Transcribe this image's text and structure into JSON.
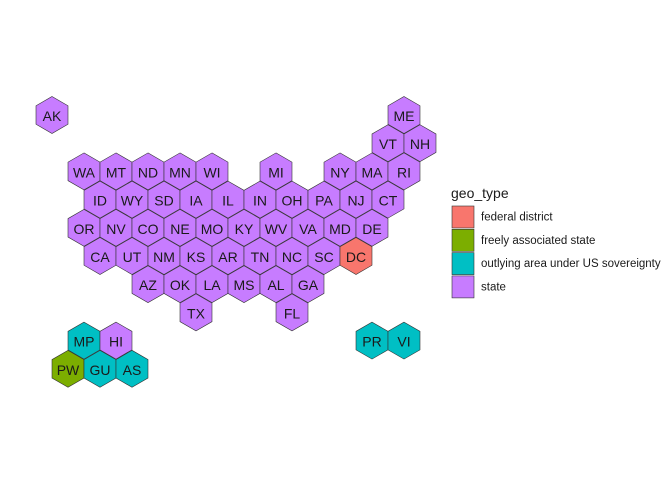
{
  "chart_data": {
    "type": "hexmap",
    "legend": {
      "title": "geo_type",
      "placement": "right",
      "entries": [
        {
          "key": "federal district",
          "label": "federal district",
          "color": "#F8766D"
        },
        {
          "key": "freely associated state",
          "label": "freely associated state",
          "color": "#7CAE00"
        },
        {
          "key": "outlying area",
          "label": "outlying area under US sovereignty",
          "color": "#00BFC4"
        },
        {
          "key": "state",
          "label": "state",
          "color": "#C77CFF"
        }
      ]
    },
    "hexes": [
      {
        "label": "AK",
        "col": 0,
        "row": 0,
        "type": "state"
      },
      {
        "label": "ME",
        "col": 11,
        "row": 0,
        "type": "state"
      },
      {
        "label": "VT",
        "col": 10,
        "row": 1,
        "type": "state"
      },
      {
        "label": "NH",
        "col": 11,
        "row": 1,
        "type": "state"
      },
      {
        "label": "WA",
        "col": 1,
        "row": 2,
        "type": "state"
      },
      {
        "label": "MT",
        "col": 2,
        "row": 2,
        "type": "state"
      },
      {
        "label": "ND",
        "col": 3,
        "row": 2,
        "type": "state"
      },
      {
        "label": "MN",
        "col": 4,
        "row": 2,
        "type": "state"
      },
      {
        "label": "WI",
        "col": 5,
        "row": 2,
        "type": "state"
      },
      {
        "label": "MI",
        "col": 7,
        "row": 2,
        "type": "state"
      },
      {
        "label": "NY",
        "col": 9,
        "row": 2,
        "type": "state"
      },
      {
        "label": "MA",
        "col": 10,
        "row": 2,
        "type": "state"
      },
      {
        "label": "RI",
        "col": 11,
        "row": 2,
        "type": "state"
      },
      {
        "label": "ID",
        "col": 1,
        "row": 3,
        "type": "state"
      },
      {
        "label": "WY",
        "col": 2,
        "row": 3,
        "type": "state"
      },
      {
        "label": "SD",
        "col": 3,
        "row": 3,
        "type": "state"
      },
      {
        "label": "IA",
        "col": 4,
        "row": 3,
        "type": "state"
      },
      {
        "label": "IL",
        "col": 5,
        "row": 3,
        "type": "state"
      },
      {
        "label": "IN",
        "col": 6,
        "row": 3,
        "type": "state"
      },
      {
        "label": "OH",
        "col": 7,
        "row": 3,
        "type": "state"
      },
      {
        "label": "PA",
        "col": 8,
        "row": 3,
        "type": "state"
      },
      {
        "label": "NJ",
        "col": 9,
        "row": 3,
        "type": "state"
      },
      {
        "label": "CT",
        "col": 10,
        "row": 3,
        "type": "state"
      },
      {
        "label": "OR",
        "col": 1,
        "row": 4,
        "type": "state"
      },
      {
        "label": "NV",
        "col": 2,
        "row": 4,
        "type": "state"
      },
      {
        "label": "CO",
        "col": 3,
        "row": 4,
        "type": "state"
      },
      {
        "label": "NE",
        "col": 4,
        "row": 4,
        "type": "state"
      },
      {
        "label": "MO",
        "col": 5,
        "row": 4,
        "type": "state"
      },
      {
        "label": "KY",
        "col": 6,
        "row": 4,
        "type": "state"
      },
      {
        "label": "WV",
        "col": 7,
        "row": 4,
        "type": "state"
      },
      {
        "label": "VA",
        "col": 8,
        "row": 4,
        "type": "state"
      },
      {
        "label": "MD",
        "col": 9,
        "row": 4,
        "type": "state"
      },
      {
        "label": "DE",
        "col": 10,
        "row": 4,
        "type": "state"
      },
      {
        "label": "CA",
        "col": 1,
        "row": 5,
        "type": "state"
      },
      {
        "label": "UT",
        "col": 2,
        "row": 5,
        "type": "state"
      },
      {
        "label": "NM",
        "col": 3,
        "row": 5,
        "type": "state"
      },
      {
        "label": "KS",
        "col": 4,
        "row": 5,
        "type": "state"
      },
      {
        "label": "AR",
        "col": 5,
        "row": 5,
        "type": "state"
      },
      {
        "label": "TN",
        "col": 6,
        "row": 5,
        "type": "state"
      },
      {
        "label": "NC",
        "col": 7,
        "row": 5,
        "type": "state"
      },
      {
        "label": "SC",
        "col": 8,
        "row": 5,
        "type": "state"
      },
      {
        "label": "DC",
        "col": 9,
        "row": 5,
        "type": "federal district"
      },
      {
        "label": "AZ",
        "col": 3,
        "row": 6,
        "type": "state"
      },
      {
        "label": "OK",
        "col": 4,
        "row": 6,
        "type": "state"
      },
      {
        "label": "LA",
        "col": 5,
        "row": 6,
        "type": "state"
      },
      {
        "label": "MS",
        "col": 6,
        "row": 6,
        "type": "state"
      },
      {
        "label": "AL",
        "col": 7,
        "row": 6,
        "type": "state"
      },
      {
        "label": "GA",
        "col": 8,
        "row": 6,
        "type": "state"
      },
      {
        "label": "TX",
        "col": 4,
        "row": 7,
        "type": "state"
      },
      {
        "label": "FL",
        "col": 7,
        "row": 7,
        "type": "state"
      },
      {
        "label": "MP",
        "col": 1,
        "row": 8,
        "type": "outlying area"
      },
      {
        "label": "HI",
        "col": 2,
        "row": 8,
        "type": "state"
      },
      {
        "label": "PR",
        "col": 10,
        "row": 8,
        "type": "outlying area"
      },
      {
        "label": "VI",
        "col": 11,
        "row": 8,
        "type": "outlying area"
      },
      {
        "label": "PW",
        "col": 0,
        "row": 9,
        "type": "freely associated state"
      },
      {
        "label": "GU",
        "col": 1,
        "row": 9,
        "type": "outlying area"
      },
      {
        "label": "AS",
        "col": 2,
        "row": 9,
        "type": "outlying area"
      }
    ]
  }
}
